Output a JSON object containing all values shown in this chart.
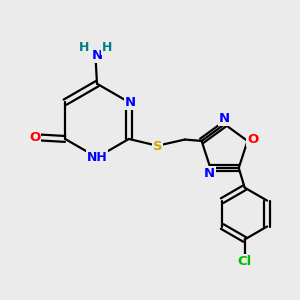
{
  "background_color": "#ebebeb",
  "atom_colors": {
    "C": "#000000",
    "N": "#0000ff",
    "O": "#ff0000",
    "S": "#ccaa00",
    "Cl": "#00bb00",
    "H": "#008080",
    "NH2_H": "#008080"
  },
  "figsize": [
    3.0,
    3.0
  ],
  "dpi": 100,
  "lw": 1.6,
  "fontsize": 9.5
}
